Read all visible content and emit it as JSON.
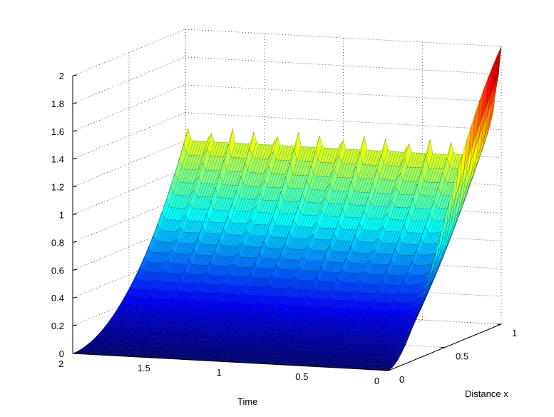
{
  "chart_data": {
    "type": "surface",
    "title": "",
    "xlabel": "Time",
    "ylabel": "Distance x",
    "zlabel": "",
    "xlim": [
      0,
      2
    ],
    "ylim": [
      0,
      1
    ],
    "zlim": [
      0,
      2
    ],
    "x_ticks": [
      "2",
      "1.5",
      "1",
      "0.5",
      "0"
    ],
    "y_ticks": [
      "0",
      "0.5",
      "1"
    ],
    "z_ticks": [
      "0",
      "0.2",
      "0.4",
      "0.6",
      "0.8",
      "1",
      "1.2",
      "1.4",
      "1.6",
      "1.8",
      "2"
    ],
    "colormap": "jet",
    "grid": true,
    "series": [
      {
        "description_values": {
          "time": [
            0,
            0.2,
            0.4,
            0.6,
            0.8,
            1.0,
            1.2,
            1.4,
            1.6,
            1.8,
            2.0
          ],
          "u_at_x1": [
            2.0,
            1.25,
            1.2,
            1.22,
            1.2,
            1.21,
            1.2,
            1.22,
            1.2,
            1.2,
            1.2
          ]
        }
      }
    ]
  }
}
